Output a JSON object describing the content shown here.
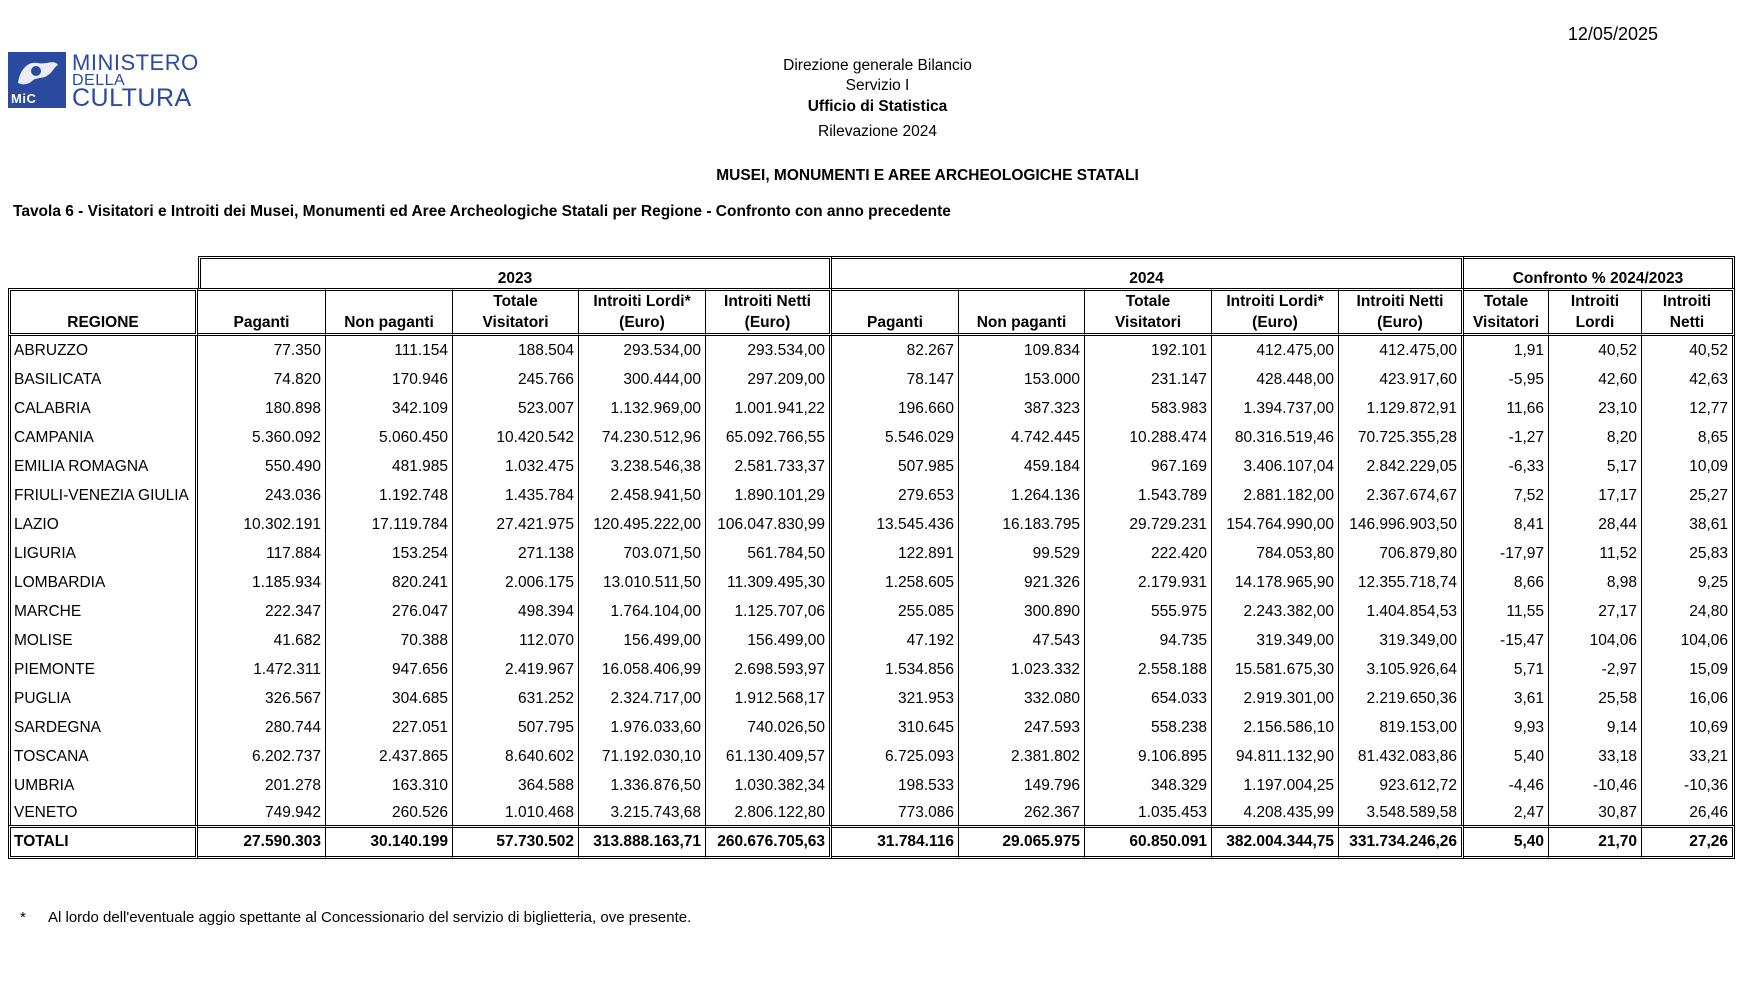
{
  "date": "12/05/2025",
  "logo": {
    "line1": "MINISTERO",
    "line2": "DELLA",
    "line3": "CULTURA",
    "mark": "MiC"
  },
  "header": {
    "line1": "Direzione generale Bilancio",
    "line2": "Servizio I",
    "line3": "Ufficio di Statistica",
    "line4": "Rilevazione 2024"
  },
  "main_title": "MUSEI, MONUMENTI E AREE ARCHEOLOGICHE STATALI",
  "table_title": "Tavola 6 - Visitatori e Introiti dei Musei, Monumenti ed Aree Archeologiche Statali per Regione - Confronto con anno precedente",
  "groups": {
    "y2023": "2023",
    "y2024": "2024",
    "confronto": "Confronto % 2024/2023"
  },
  "columns": {
    "regione": "REGIONE",
    "paganti": "Paganti",
    "non_paganti": "Non paganti",
    "totale_1": "Totale",
    "totale_2": "Visitatori",
    "lordi_1": "Introiti Lordi*",
    "lordi_2": "(Euro)",
    "netti_1": "Introiti Netti",
    "netti_2": "(Euro)",
    "c_tot_1": "Totale",
    "c_tot_2": "Visitatori",
    "c_lordi_1": "Introiti",
    "c_lordi_2": "Lordi",
    "c_netti_1": "Introiti",
    "c_netti_2": "Netti"
  },
  "rows": [
    [
      "ABRUZZO",
      "77.350",
      "111.154",
      "188.504",
      "293.534,00",
      "293.534,00",
      "82.267",
      "109.834",
      "192.101",
      "412.475,00",
      "412.475,00",
      "1,91",
      "40,52",
      "40,52"
    ],
    [
      "BASILICATA",
      "74.820",
      "170.946",
      "245.766",
      "300.444,00",
      "297.209,00",
      "78.147",
      "153.000",
      "231.147",
      "428.448,00",
      "423.917,60",
      "-5,95",
      "42,60",
      "42,63"
    ],
    [
      "CALABRIA",
      "180.898",
      "342.109",
      "523.007",
      "1.132.969,00",
      "1.001.941,22",
      "196.660",
      "387.323",
      "583.983",
      "1.394.737,00",
      "1.129.872,91",
      "11,66",
      "23,10",
      "12,77"
    ],
    [
      "CAMPANIA",
      "5.360.092",
      "5.060.450",
      "10.420.542",
      "74.230.512,96",
      "65.092.766,55",
      "5.546.029",
      "4.742.445",
      "10.288.474",
      "80.316.519,46",
      "70.725.355,28",
      "-1,27",
      "8,20",
      "8,65"
    ],
    [
      "EMILIA ROMAGNA",
      "550.490",
      "481.985",
      "1.032.475",
      "3.238.546,38",
      "2.581.733,37",
      "507.985",
      "459.184",
      "967.169",
      "3.406.107,04",
      "2.842.229,05",
      "-6,33",
      "5,17",
      "10,09"
    ],
    [
      "FRIULI-VENEZIA GIULIA",
      "243.036",
      "1.192.748",
      "1.435.784",
      "2.458.941,50",
      "1.890.101,29",
      "279.653",
      "1.264.136",
      "1.543.789",
      "2.881.182,00",
      "2.367.674,67",
      "7,52",
      "17,17",
      "25,27"
    ],
    [
      "LAZIO",
      "10.302.191",
      "17.119.784",
      "27.421.975",
      "120.495.222,00",
      "106.047.830,99",
      "13.545.436",
      "16.183.795",
      "29.729.231",
      "154.764.990,00",
      "146.996.903,50",
      "8,41",
      "28,44",
      "38,61"
    ],
    [
      "LIGURIA",
      "117.884",
      "153.254",
      "271.138",
      "703.071,50",
      "561.784,50",
      "122.891",
      "99.529",
      "222.420",
      "784.053,80",
      "706.879,80",
      "-17,97",
      "11,52",
      "25,83"
    ],
    [
      "LOMBARDIA",
      "1.185.934",
      "820.241",
      "2.006.175",
      "13.010.511,50",
      "11.309.495,30",
      "1.258.605",
      "921.326",
      "2.179.931",
      "14.178.965,90",
      "12.355.718,74",
      "8,66",
      "8,98",
      "9,25"
    ],
    [
      "MARCHE",
      "222.347",
      "276.047",
      "498.394",
      "1.764.104,00",
      "1.125.707,06",
      "255.085",
      "300.890",
      "555.975",
      "2.243.382,00",
      "1.404.854,53",
      "11,55",
      "27,17",
      "24,80"
    ],
    [
      "MOLISE",
      "41.682",
      "70.388",
      "112.070",
      "156.499,00",
      "156.499,00",
      "47.192",
      "47.543",
      "94.735",
      "319.349,00",
      "319.349,00",
      "-15,47",
      "104,06",
      "104,06"
    ],
    [
      "PIEMONTE",
      "1.472.311",
      "947.656",
      "2.419.967",
      "16.058.406,99",
      "2.698.593,97",
      "1.534.856",
      "1.023.332",
      "2.558.188",
      "15.581.675,30",
      "3.105.926,64",
      "5,71",
      "-2,97",
      "15,09"
    ],
    [
      "PUGLIA",
      "326.567",
      "304.685",
      "631.252",
      "2.324.717,00",
      "1.912.568,17",
      "321.953",
      "332.080",
      "654.033",
      "2.919.301,00",
      "2.219.650,36",
      "3,61",
      "25,58",
      "16,06"
    ],
    [
      "SARDEGNA",
      "280.744",
      "227.051",
      "507.795",
      "1.976.033,60",
      "740.026,50",
      "310.645",
      "247.593",
      "558.238",
      "2.156.586,10",
      "819.153,00",
      "9,93",
      "9,14",
      "10,69"
    ],
    [
      "TOSCANA",
      "6.202.737",
      "2.437.865",
      "8.640.602",
      "71.192.030,10",
      "61.130.409,57",
      "6.725.093",
      "2.381.802",
      "9.106.895",
      "94.811.132,90",
      "81.432.083,86",
      "5,40",
      "33,18",
      "33,21"
    ],
    [
      "UMBRIA",
      "201.278",
      "163.310",
      "364.588",
      "1.336.876,50",
      "1.030.382,34",
      "198.533",
      "149.796",
      "348.329",
      "1.197.004,25",
      "923.612,72",
      "-4,46",
      "-10,46",
      "-10,36"
    ],
    [
      "VENETO",
      "749.942",
      "260.526",
      "1.010.468",
      "3.215.743,68",
      "2.806.122,80",
      "773.086",
      "262.367",
      "1.035.453",
      "4.208.435,99",
      "3.548.589,58",
      "2,47",
      "30,87",
      "26,46"
    ]
  ],
  "totals": [
    "TOTALI",
    "27.590.303",
    "30.140.199",
    "57.730.502",
    "313.888.163,71",
    "260.676.705,63",
    "31.784.116",
    "29.065.975",
    "60.850.091",
    "382.004.344,75",
    "331.734.246,26",
    "5,40",
    "21,70",
    "27,26"
  ],
  "footnote": {
    "star": "*",
    "text": "Al lordo dell'eventuale aggio spettante al Concessionario del servizio di biglietteria, ove presente."
  }
}
